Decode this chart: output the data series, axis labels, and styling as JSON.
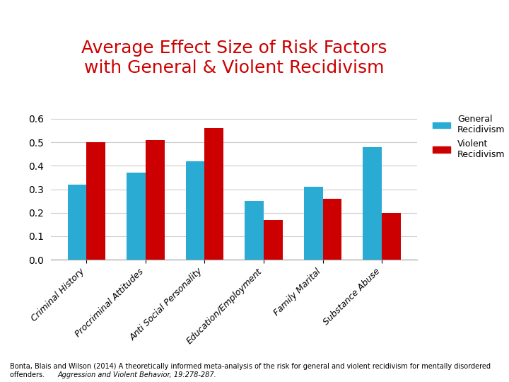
{
  "title": "Average Effect Size of Risk Factors\nwith General & Violent Recidivism",
  "title_color": "#cc0000",
  "categories": [
    "Criminal History",
    "Procriminal Attitudes",
    "Anti Social Personality",
    "Education/Employment",
    "Family Marital",
    "Substance Abuse"
  ],
  "general_recidivism": [
    0.32,
    0.37,
    0.42,
    0.25,
    0.31,
    0.48
  ],
  "violent_recidivism": [
    0.5,
    0.51,
    0.56,
    0.17,
    0.26,
    0.2
  ],
  "general_color": "#29ABD4",
  "violent_color": "#CC0000",
  "ylim": [
    0,
    0.65
  ],
  "yticks": [
    0,
    0.1,
    0.2,
    0.3,
    0.4,
    0.5,
    0.6
  ],
  "legend_general": "General\nRecidivism",
  "legend_violent": "Violent\nRecidivism",
  "footnote_normal": "Bonta, Blais and Wilson (2014) A theoretically informed meta-analysis of the risk for general and violent recidivism for mentally disordered\noffenders. ",
  "footnote_italic": "Aggression and Violent Behavior, 19:278-287.",
  "background_color": "#ffffff",
  "bar_width": 0.32,
  "title_fontsize": 18,
  "tick_fontsize": 10,
  "xlabel_fontsize": 9,
  "legend_fontsize": 9,
  "footnote_fontsize": 7
}
